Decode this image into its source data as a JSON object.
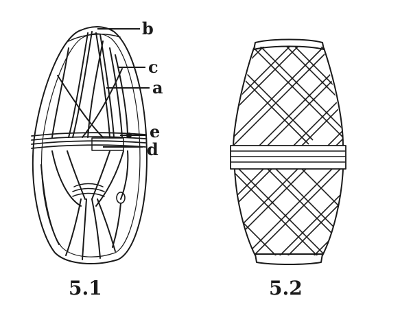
{
  "figures": [
    {
      "caption": "5.1",
      "callouts": [
        {
          "label": "b"
        },
        {
          "label": "c"
        },
        {
          "label": "a"
        },
        {
          "label": "e"
        },
        {
          "label": "d"
        }
      ]
    },
    {
      "caption": "5.2"
    }
  ],
  "colors": {
    "ink": "#1a1a1a",
    "paper": "#ffffff"
  }
}
